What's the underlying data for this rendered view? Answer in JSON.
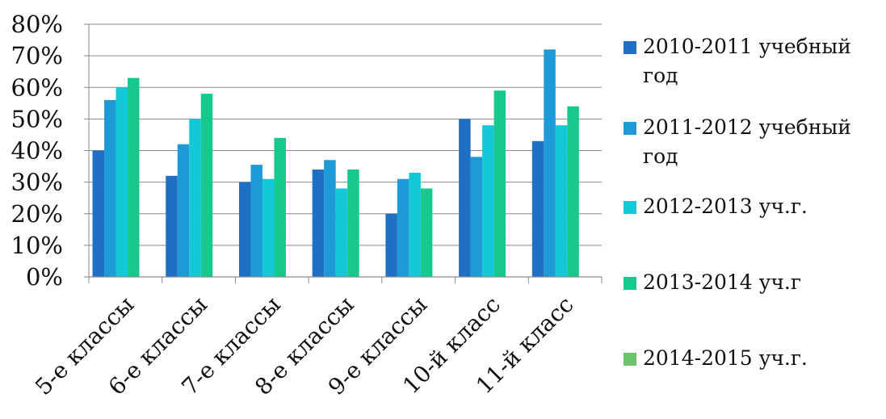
{
  "chart_data": {
    "type": "bar",
    "categories": [
      "5-е классы",
      "6-е классы",
      "7-е классы",
      "8-е классы",
      "9-е классы",
      "10-й класс",
      "11-й класс"
    ],
    "series": [
      {
        "name": "2010-2011 учебный год",
        "values": [
          40,
          32,
          30,
          34,
          20,
          50,
          43
        ],
        "color": "#1F6FC5"
      },
      {
        "name": "2011-2012 учебный год",
        "values": [
          56,
          42,
          35.5,
          37,
          31,
          38,
          72
        ],
        "color": "#1E9BD7"
      },
      {
        "name": "2012-2013 уч.г.",
        "values": [
          60,
          50,
          31,
          28,
          33,
          48,
          48
        ],
        "color": "#14C8D8"
      },
      {
        "name": "2013-2014 уч.г",
        "values": [
          63,
          58,
          44,
          34,
          28,
          59,
          54
        ],
        "color": "#17C98E"
      },
      {
        "name": "2014-2015 уч.г.",
        "values": [
          null,
          null,
          null,
          null,
          null,
          null,
          null
        ],
        "color": "#6CC46A"
      }
    ],
    "yticks": [
      "0%",
      "10%",
      "20%",
      "30%",
      "40%",
      "50%",
      "60%",
      "70%",
      "80%"
    ],
    "ylim": [
      0,
      80
    ],
    "grid": true,
    "legend": "right",
    "title": "",
    "xlabel": "",
    "ylabel": ""
  }
}
